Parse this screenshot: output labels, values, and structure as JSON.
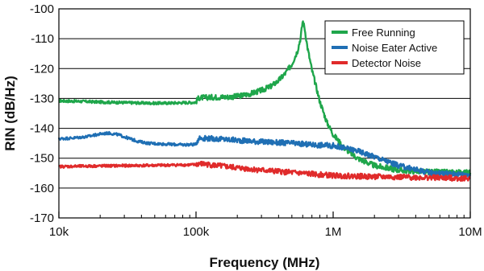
{
  "chart_data": {
    "type": "line",
    "xlabel": "Frequency (MHz)",
    "ylabel": "RIN (dB/Hz)",
    "x_scale": "log",
    "xlim": [
      10000,
      10000000
    ],
    "ylim": [
      -170,
      -100
    ],
    "x_ticks": [
      10000,
      100000,
      1000000,
      10000000
    ],
    "x_tick_labels": [
      "10k",
      "100k",
      "1M",
      "10M"
    ],
    "y_ticks": [
      -100,
      -110,
      -120,
      -130,
      -140,
      -150,
      -160,
      -170
    ],
    "y_tick_labels": [
      "-100",
      "-110",
      "-120",
      "-130",
      "-140",
      "-150",
      "-160",
      "-170"
    ],
    "grid": "horizontal",
    "legend_position": "top-right",
    "series": [
      {
        "name": "Free Running",
        "color": "#1fa64b",
        "points": [
          [
            10000,
            -130.8
          ],
          [
            15000,
            -131.0
          ],
          [
            20000,
            -131.2
          ],
          [
            30000,
            -131.4
          ],
          [
            50000,
            -131.6
          ],
          [
            70000,
            -131.5
          ],
          [
            99000,
            -131.3
          ],
          [
            105000,
            -129.8
          ],
          [
            130000,
            -129.6
          ],
          [
            170000,
            -129.5
          ],
          [
            200000,
            -129.3
          ],
          [
            250000,
            -128.4
          ],
          [
            300000,
            -127.3
          ],
          [
            350000,
            -126.0
          ],
          [
            400000,
            -124.0
          ],
          [
            450000,
            -121.5
          ],
          [
            500000,
            -118.5
          ],
          [
            550000,
            -114.0
          ],
          [
            580000,
            -109.5
          ],
          [
            600000,
            -104.0
          ],
          [
            620000,
            -106.5
          ],
          [
            650000,
            -113.0
          ],
          [
            700000,
            -120.5
          ],
          [
            800000,
            -131.0
          ],
          [
            900000,
            -138.0
          ],
          [
            1000000,
            -142.0
          ],
          [
            1200000,
            -146.5
          ],
          [
            1500000,
            -150.0
          ],
          [
            2000000,
            -152.5
          ],
          [
            3000000,
            -154.0
          ],
          [
            5000000,
            -154.6
          ],
          [
            10000000,
            -154.8
          ]
        ]
      },
      {
        "name": "Noise Eater Active",
        "color": "#1f6fb4",
        "points": [
          [
            10000,
            -143.5
          ],
          [
            13000,
            -143.2
          ],
          [
            16000,
            -142.8
          ],
          [
            20000,
            -141.9
          ],
          [
            23000,
            -141.6
          ],
          [
            27000,
            -142.1
          ],
          [
            32000,
            -143.3
          ],
          [
            38000,
            -144.4
          ],
          [
            45000,
            -145.0
          ],
          [
            60000,
            -145.3
          ],
          [
            80000,
            -145.5
          ],
          [
            99000,
            -145.4
          ],
          [
            105000,
            -143.2
          ],
          [
            150000,
            -143.6
          ],
          [
            200000,
            -144.0
          ],
          [
            300000,
            -144.5
          ],
          [
            500000,
            -145.0
          ],
          [
            700000,
            -145.5
          ],
          [
            1000000,
            -145.8
          ],
          [
            1500000,
            -147.5
          ],
          [
            2000000,
            -149.5
          ],
          [
            3000000,
            -152.5
          ],
          [
            5000000,
            -154.8
          ],
          [
            7000000,
            -155.2
          ],
          [
            10000000,
            -155.5
          ]
        ]
      },
      {
        "name": "Detector Noise",
        "color": "#e02b2b",
        "points": [
          [
            10000,
            -152.8
          ],
          [
            20000,
            -152.6
          ],
          [
            30000,
            -152.5
          ],
          [
            50000,
            -152.4
          ],
          [
            70000,
            -152.3
          ],
          [
            99000,
            -152.2
          ],
          [
            105000,
            -151.8
          ],
          [
            150000,
            -152.6
          ],
          [
            200000,
            -153.2
          ],
          [
            300000,
            -154.0
          ],
          [
            500000,
            -154.8
          ],
          [
            700000,
            -155.3
          ],
          [
            1000000,
            -155.8
          ],
          [
            2000000,
            -156.2
          ],
          [
            5000000,
            -156.5
          ],
          [
            10000000,
            -156.8
          ]
        ]
      }
    ]
  }
}
